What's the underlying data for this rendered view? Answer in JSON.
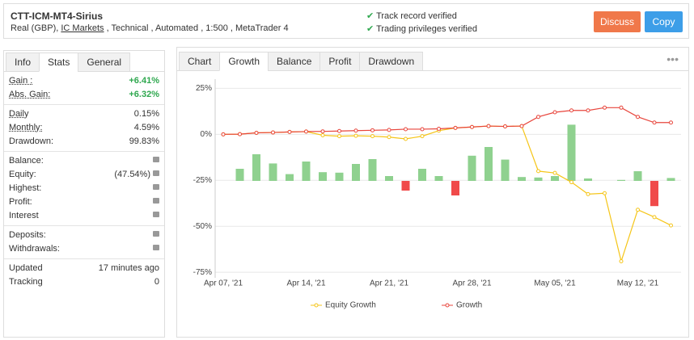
{
  "header": {
    "title": "CTT-ICM-MT4-Sirius",
    "subtitle": [
      "Real (GBP),",
      "IC Markets",
      ", Technical , Automated , 1:500 , MetaTrader 4"
    ],
    "verified": [
      "Track record verified",
      "Trading privileges verified"
    ],
    "buttons": [
      "Discuss",
      "Copy"
    ]
  },
  "left_tabs": {
    "items": [
      "Info",
      "Stats",
      "General"
    ],
    "active": 1
  },
  "stats": [
    [
      {
        "label": "Gain :",
        "value": "+6.41%"
      },
      {
        "label": "Abs. Gain:",
        "value": "+6.32%"
      }
    ],
    [
      {
        "label": "Daily",
        "value": "0.15%"
      },
      {
        "label": "Monthly:",
        "value": "4.59%"
      },
      {
        "label": "Drawdown:",
        "value": "99.83%"
      }
    ],
    [
      {
        "label": "Balance:",
        "locked": true
      },
      {
        "label": "Equity:",
        "value": "(47.54%)",
        "locked": true
      },
      {
        "label": "Highest:",
        "locked": true
      },
      {
        "label": "Profit:",
        "locked": true
      },
      {
        "label": "Interest",
        "locked": true
      }
    ],
    [
      {
        "label": "Deposits:",
        "locked": true
      },
      {
        "label": "Withdrawals:",
        "locked": true
      }
    ],
    [
      {
        "label": "Updated",
        "value": "17 minutes ago"
      },
      {
        "label": "Tracking",
        "value": "0"
      }
    ]
  ],
  "chart_tabs": {
    "items": [
      "Chart",
      "Growth",
      "Balance",
      "Profit",
      "Drawdown"
    ],
    "active": 1
  },
  "chart_data": {
    "type": "line",
    "categories": [
      "Apr 07, '21",
      null,
      null,
      null,
      null,
      "Apr 14, '21",
      null,
      null,
      null,
      null,
      "Apr 21, '21",
      null,
      null,
      null,
      null,
      "Apr 28, '21",
      null,
      null,
      null,
      null,
      "May 05, '21",
      null,
      null,
      null,
      null,
      "May 12, '21",
      null,
      null
    ],
    "ylim": [
      -78,
      30
    ],
    "yticks": [
      {
        "value": 25,
        "label": "25%"
      },
      {
        "value": 0,
        "label": "0%"
      },
      {
        "value": -25,
        "label": "-25%"
      },
      {
        "value": -50,
        "label": "-50%"
      },
      {
        "value": -75,
        "label": "-75%"
      }
    ],
    "y2lim": [
      -10,
      10.5
    ],
    "grid": true,
    "legend": "bottom",
    "bars": {
      "axis": "y2",
      "color": "#8fd18f",
      "negative_color": "#f04a4a",
      "values": [
        null,
        1.25,
        2.75,
        1.8,
        0.7,
        2,
        0.9,
        0.85,
        1.75,
        2.25,
        0.5,
        -1,
        1.25,
        0.5,
        -1.5,
        2.6,
        3.5,
        2.2,
        0.4,
        0.35,
        0.5,
        5.8,
        0.25,
        0,
        0.1,
        1,
        -2.6,
        0.3
      ]
    },
    "series": [
      {
        "name": "Equity Growth",
        "color": "#f5c518",
        "values": [
          0,
          0.1,
          0.8,
          1,
          1.3,
          1.5,
          -0.5,
          -1,
          -0.8,
          -1,
          -1.5,
          -2.5,
          -1,
          2,
          3.5,
          4,
          4.5,
          4.3,
          4.5,
          -20,
          -21,
          -26,
          -32.5,
          -32,
          -69,
          -41,
          -45,
          -49.5
        ]
      },
      {
        "name": "Growth",
        "color": "#e8453c",
        "values": [
          0,
          0.1,
          0.8,
          1,
          1.3,
          1.5,
          1.6,
          1.8,
          2,
          2.2,
          2.4,
          2.8,
          2.8,
          3,
          3.5,
          4,
          4.5,
          4.3,
          4.5,
          9.5,
          12,
          13,
          13,
          14.5,
          14.5,
          9.5,
          6.4,
          6.41
        ]
      }
    ]
  }
}
